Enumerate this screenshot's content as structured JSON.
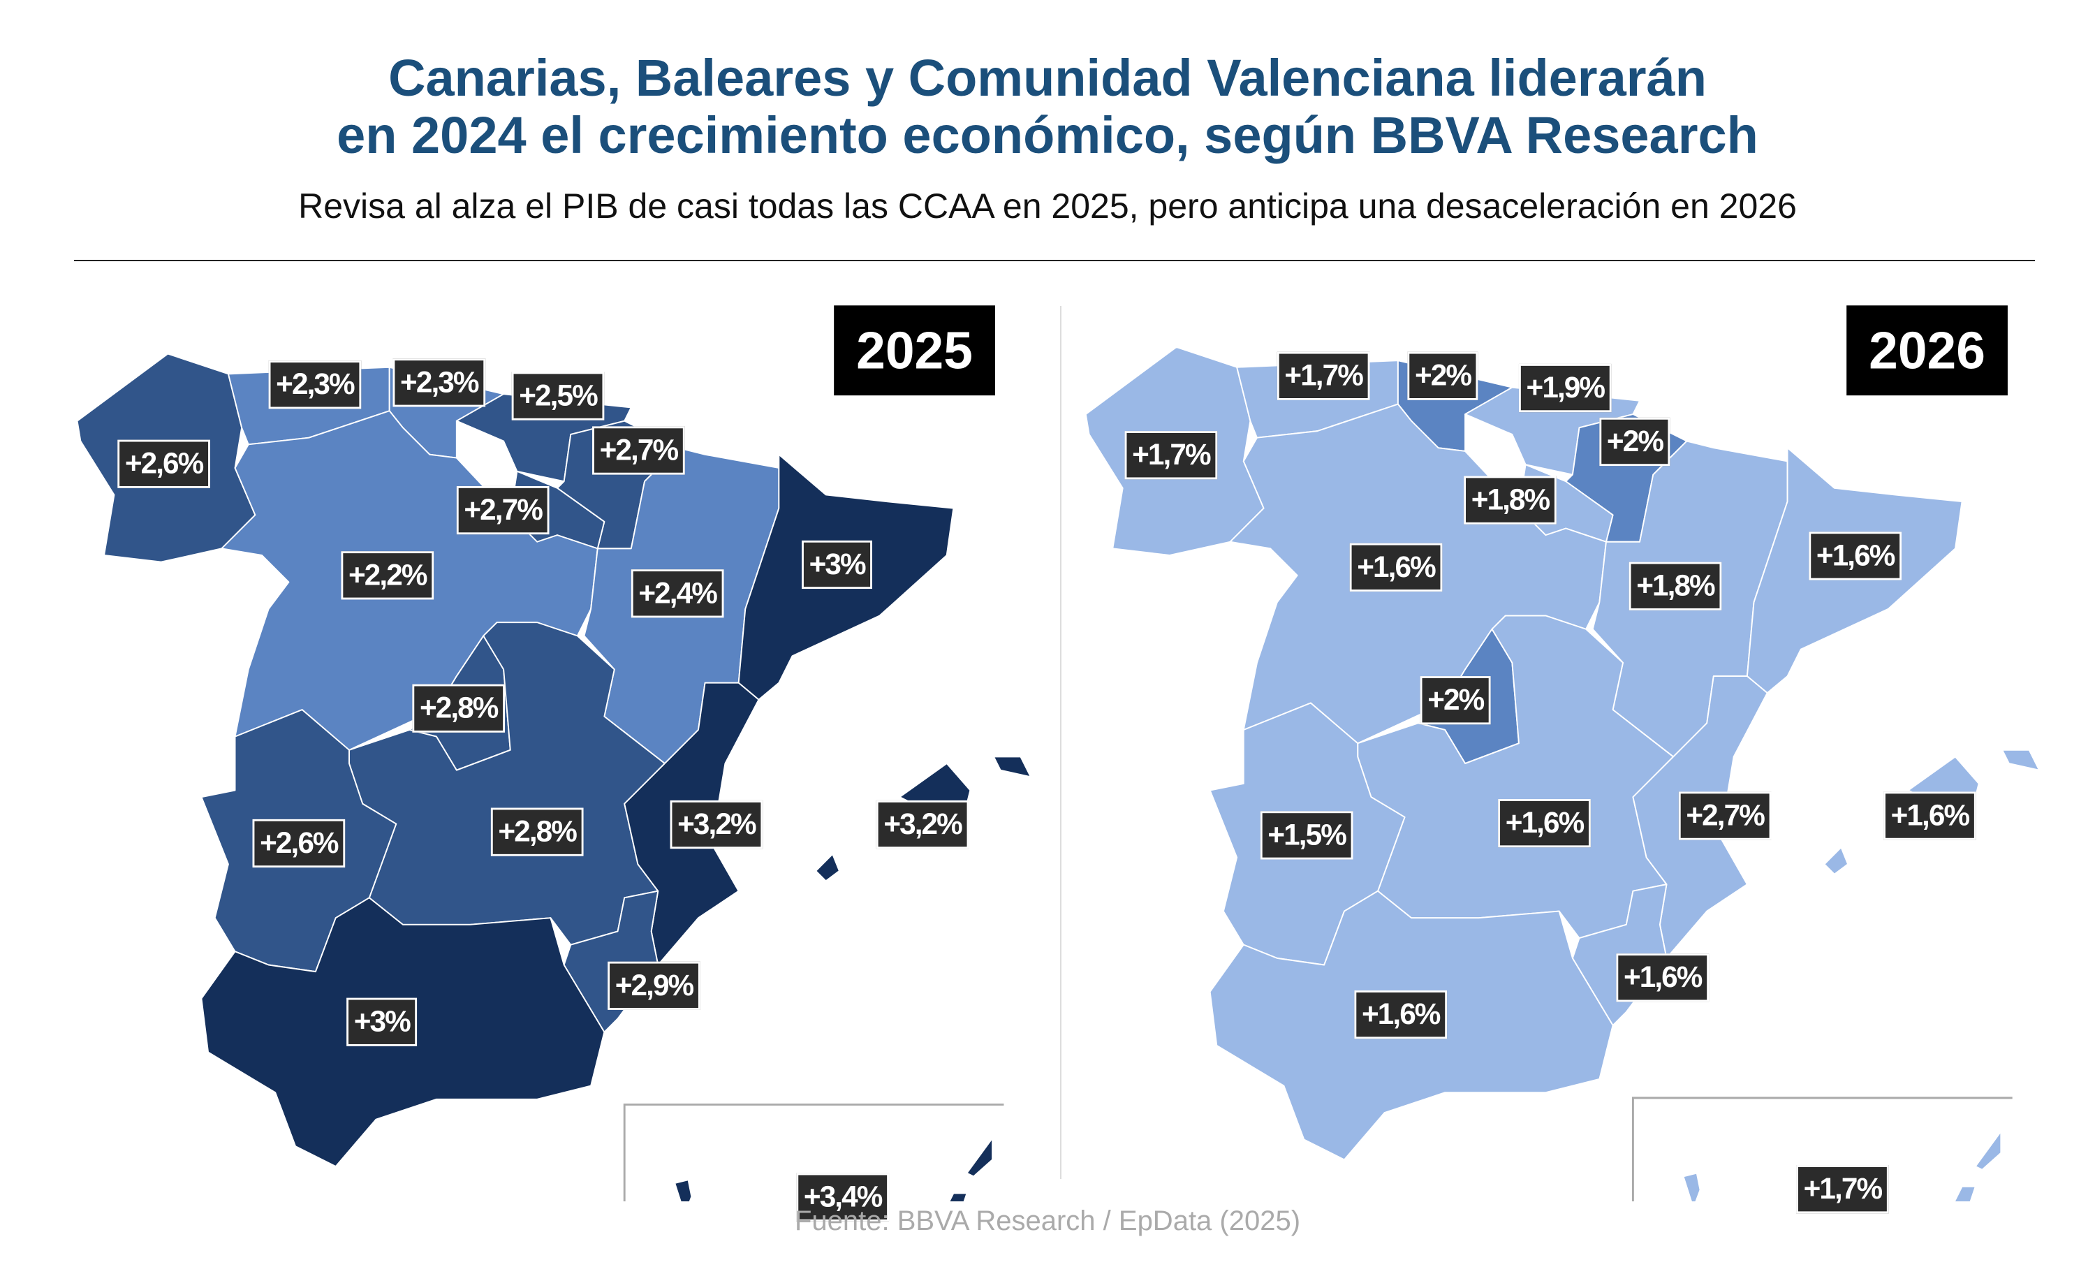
{
  "header": {
    "title_line1": "Canarias, Baleares y Comunidad Valenciana liderarán",
    "title_line2": "en 2024 el crecimiento económico, según BBVA Research",
    "subtitle": "Revisa al alza el PIB de casi todas las CCAA en 2025, pero anticipa una desaceleración en 2026"
  },
  "colors": {
    "title": "#1b4f7b",
    "darkest": "#142f5a",
    "dark": "#31558a",
    "medium": "#5b84c2",
    "light": "#9ab8e6",
    "label_bg": "#2b2b2b"
  },
  "maps": [
    {
      "year": "2025",
      "regions": {
        "galicia": {
          "value": "+2,6%",
          "fill": "#31558a"
        },
        "asturias": {
          "value": "+2,3%",
          "fill": "#5b84c2"
        },
        "cantabria": {
          "value": "+2,3%",
          "fill": "#5b84c2"
        },
        "pais_vasco": {
          "value": "+2,5%",
          "fill": "#31558a"
        },
        "navarra": {
          "value": "+2,7%",
          "fill": "#31558a"
        },
        "la_rioja": {
          "value": "+2,7%",
          "fill": "#31558a"
        },
        "castilla_leon": {
          "value": "+2,2%",
          "fill": "#5b84c2"
        },
        "aragon": {
          "value": "+2,4%",
          "fill": "#5b84c2"
        },
        "cataluna": {
          "value": "+3%",
          "fill": "#142f5a"
        },
        "madrid": {
          "value": "+2,8%",
          "fill": "#31558a"
        },
        "castilla_la_mancha": {
          "value": "+2,8%",
          "fill": "#31558a"
        },
        "extremadura": {
          "value": "+2,6%",
          "fill": "#31558a"
        },
        "valencia": {
          "value": "+3,2%",
          "fill": "#142f5a"
        },
        "baleares": {
          "value": "+3,2%",
          "fill": "#142f5a"
        },
        "murcia": {
          "value": "+2,9%",
          "fill": "#31558a"
        },
        "andalucia": {
          "value": "+3%",
          "fill": "#142f5a"
        },
        "canarias": {
          "value": "+3,4%",
          "fill": "#142f5a"
        }
      }
    },
    {
      "year": "2026",
      "regions": {
        "galicia": {
          "value": "+1,7%",
          "fill": "#9ab8e6"
        },
        "asturias": {
          "value": "+1,7%",
          "fill": "#9ab8e6"
        },
        "cantabria": {
          "value": "+2%",
          "fill": "#5b84c2"
        },
        "pais_vasco": {
          "value": "+1,9%",
          "fill": "#9ab8e6"
        },
        "navarra": {
          "value": "+2%",
          "fill": "#5b84c2"
        },
        "la_rioja": {
          "value": "+1,8%",
          "fill": "#9ab8e6"
        },
        "castilla_leon": {
          "value": "+1,6%",
          "fill": "#9ab8e6"
        },
        "aragon": {
          "value": "+1,8%",
          "fill": "#9ab8e6"
        },
        "cataluna": {
          "value": "+1,6%",
          "fill": "#9ab8e6"
        },
        "madrid": {
          "value": "+2%",
          "fill": "#5b84c2"
        },
        "castilla_la_mancha": {
          "value": "+1,6%",
          "fill": "#9ab8e6"
        },
        "extremadura": {
          "value": "+1,5%",
          "fill": "#9ab8e6"
        },
        "valencia": {
          "value": "+2,7%",
          "fill": "#9ab8e6"
        },
        "baleares": {
          "value": "+1,6%",
          "fill": "#9ab8e6"
        },
        "murcia": {
          "value": "+1,6%",
          "fill": "#9ab8e6"
        },
        "andalucia": {
          "value": "+1,6%",
          "fill": "#9ab8e6"
        },
        "canarias": {
          "value": "+1,7%",
          "fill": "#9ab8e6"
        }
      }
    }
  ],
  "footer": {
    "source": "Fuente: BBVA Research / EpData (2025)"
  }
}
